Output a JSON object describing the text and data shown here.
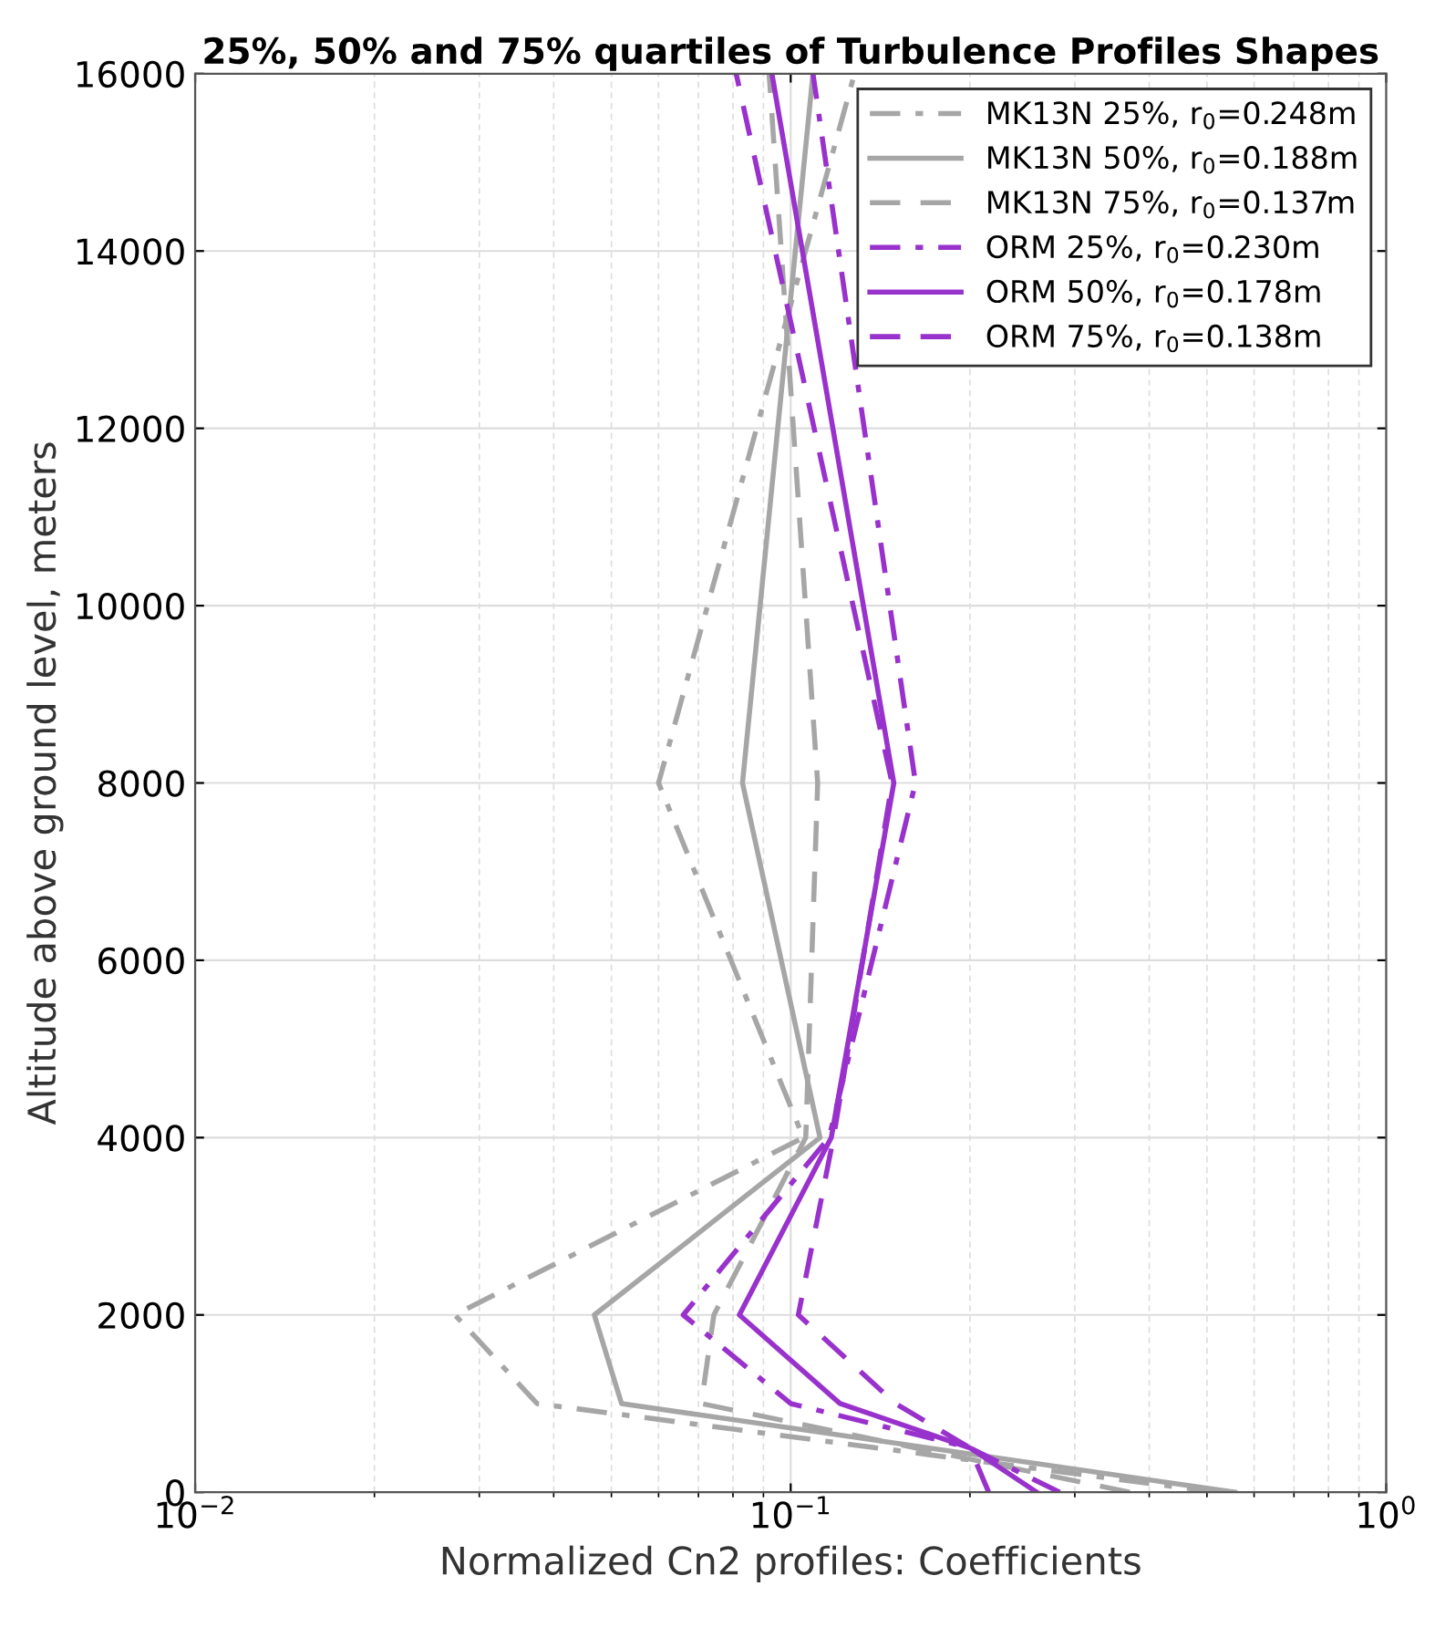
{
  "chart_data": {
    "type": "line",
    "title": "25%, 50% and 75% quartiles of Turbulence Profiles Shapes",
    "xlabel": "Normalized Cn2 profiles: Coefficients",
    "ylabel": "Altitude above ground level, meters",
    "log": "x",
    "xlim": [
      0.01,
      1
    ],
    "xticks": [
      {
        "value": 0.01,
        "label": "10$^{−2}$"
      },
      {
        "value": 0.1,
        "label": "10$^{−1}$"
      },
      {
        "value": 1,
        "label": "10$^{0}$"
      }
    ],
    "ylim": [
      0,
      16000
    ],
    "yticks": [
      0,
      2000,
      4000,
      6000,
      8000,
      10000,
      12000,
      14000,
      16000
    ],
    "grid": true,
    "legend": "top right",
    "series": [
      {
        "name": "MK13N 25%, r$_{0}$=0.248m",
        "color": "#a6a6a6",
        "line_style": "dashdot",
        "x": [
          0.52,
          0.0375,
          0.0273,
          0.105,
          0.06,
          0.128
        ],
        "values": [
          0,
          1000,
          2000,
          4000,
          8000,
          16000
        ]
      },
      {
        "name": "MK13N 50%, r$_{0}$=0.188m",
        "color": "#a6a6a6",
        "line_style": "solid",
        "x": [
          0.557,
          0.052,
          0.0468,
          0.112,
          0.083,
          0.109
        ],
        "values": [
          0,
          1000,
          2000,
          4000,
          8000,
          16000
        ]
      },
      {
        "name": "MK13N 75%, r$_{0}$=0.137m",
        "color": "#a6a6a6",
        "line_style": "dashed",
        "x": [
          0.371,
          0.0708,
          0.0743,
          0.106,
          0.111,
          0.092
        ],
        "values": [
          0,
          1000,
          2000,
          4000,
          8000,
          16000
        ]
      },
      {
        "name": "ORM 25%, r$_{0}$=0.230m",
        "color": "#9932cc",
        "line_style": "dashdot",
        "x": [
          0.283,
          0.2,
          0.1,
          0.066,
          0.116,
          0.162,
          0.109
        ],
        "values": [
          0,
          500,
          1000,
          2000,
          4000,
          8000,
          16000
        ]
      },
      {
        "name": "ORM 50%, r$_{0}$=0.178m",
        "color": "#9932cc",
        "line_style": "solid",
        "x": [
          0.259,
          0.2,
          0.121,
          0.082,
          0.117,
          0.149,
          0.093
        ],
        "values": [
          0,
          500,
          1000,
          2000,
          4000,
          8000,
          16000
        ]
      },
      {
        "name": "ORM 75%, r$_{0}$=0.138m",
        "color": "#9932cc",
        "line_style": "dashed",
        "x": [
          0.215,
          0.2,
          0.15,
          0.103,
          0.118,
          0.148,
          0.081
        ],
        "values": [
          0,
          500,
          1000,
          2000,
          4000,
          8000,
          16000
        ]
      }
    ]
  }
}
